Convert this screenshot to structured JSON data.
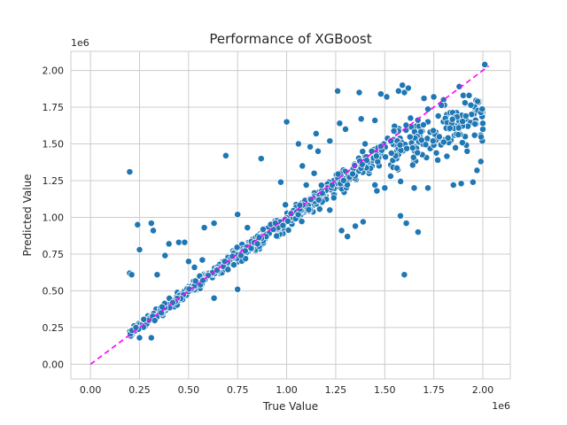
{
  "chart_data": {
    "type": "scatter",
    "title": "Performance of XGBoost",
    "xlabel": "True Value",
    "ylabel": "Predicted Value",
    "x_offset_label": "1e6",
    "y_offset_label": "1e6",
    "xlim": [
      -0.1,
      2.14
    ],
    "ylim": [
      -0.1,
      2.13
    ],
    "x_ticks": [
      "0.00",
      "0.25",
      "0.50",
      "0.75",
      "1.00",
      "1.25",
      "1.50",
      "1.75",
      "2.00"
    ],
    "y_ticks": [
      "0.00",
      "0.25",
      "0.50",
      "0.75",
      "1.00",
      "1.25",
      "1.50",
      "1.75",
      "2.00"
    ],
    "grid": true,
    "legend": "none",
    "colors": {
      "points": "#1f77b4",
      "reference_line": "#ff00ff",
      "grid": "#cccccc",
      "text": "#262626"
    },
    "reference_line": {
      "style": "dashed",
      "x": [
        0.0,
        2.03
      ],
      "y": [
        0.0,
        2.03
      ]
    },
    "points": [
      [
        0.2,
        1.31
      ],
      [
        0.2,
        0.62
      ],
      [
        0.21,
        0.61
      ],
      [
        0.24,
        0.95
      ],
      [
        0.25,
        0.78
      ],
      [
        0.31,
        0.96
      ],
      [
        0.32,
        0.91
      ],
      [
        0.34,
        0.61
      ],
      [
        0.38,
        0.74
      ],
      [
        0.4,
        0.82
      ],
      [
        0.45,
        0.83
      ],
      [
        0.48,
        0.83
      ],
      [
        0.5,
        0.7
      ],
      [
        0.53,
        0.66
      ],
      [
        0.57,
        0.71
      ],
      [
        0.58,
        0.93
      ],
      [
        0.63,
        0.96
      ],
      [
        0.69,
        1.42
      ],
      [
        0.75,
        1.02
      ],
      [
        0.8,
        0.93
      ],
      [
        0.87,
        1.4
      ],
      [
        0.97,
        1.24
      ],
      [
        1.0,
        1.65
      ],
      [
        0.63,
        0.45
      ],
      [
        0.75,
        0.51
      ],
      [
        0.31,
        0.18
      ],
      [
        0.25,
        0.18
      ],
      [
        0.2,
        0.23
      ],
      [
        1.06,
        1.5
      ],
      [
        1.12,
        1.48
      ],
      [
        1.15,
        1.57
      ],
      [
        1.22,
        1.52
      ],
      [
        1.27,
        1.64
      ],
      [
        1.3,
        1.6
      ],
      [
        1.38,
        1.67
      ],
      [
        1.26,
        1.86
      ],
      [
        1.37,
        1.85
      ],
      [
        1.4,
        1.5
      ],
      [
        1.45,
        1.66
      ],
      [
        1.28,
        0.91
      ],
      [
        1.31,
        0.87
      ],
      [
        1.35,
        0.94
      ],
      [
        1.39,
        0.97
      ],
      [
        1.58,
        1.01
      ],
      [
        1.61,
        0.96
      ],
      [
        1.67,
        0.9
      ],
      [
        1.6,
        0.61
      ],
      [
        1.65,
        1.2
      ],
      [
        1.72,
        1.2
      ],
      [
        1.77,
        1.39
      ],
      [
        1.85,
        1.22
      ],
      [
        1.89,
        1.23
      ],
      [
        1.92,
        1.45
      ],
      [
        1.95,
        1.24
      ],
      [
        1.97,
        1.32
      ],
      [
        1.99,
        1.38
      ],
      [
        2.0,
        1.6
      ],
      [
        2.0,
        1.64
      ],
      [
        2.01,
        2.04
      ],
      [
        1.98,
        1.79
      ],
      [
        1.96,
        1.72
      ],
      [
        1.9,
        1.83
      ],
      [
        1.88,
        1.89
      ],
      [
        1.93,
        1.83
      ],
      [
        1.59,
        1.9
      ],
      [
        1.6,
        1.85
      ],
      [
        1.62,
        1.88
      ],
      [
        1.57,
        1.86
      ],
      [
        1.51,
        1.82
      ],
      [
        1.48,
        1.84
      ],
      [
        1.7,
        1.81
      ],
      [
        1.75,
        1.82
      ],
      [
        1.8,
        1.8
      ],
      [
        1.66,
        1.62
      ],
      [
        1.68,
        1.55
      ],
      [
        1.72,
        1.65
      ],
      [
        1.76,
        1.58
      ],
      [
        1.83,
        1.6
      ],
      [
        1.87,
        1.65
      ],
      [
        1.91,
        1.55
      ],
      [
        1.94,
        1.7
      ],
      [
        1.99,
        1.56
      ],
      [
        1.5,
        1.2
      ],
      [
        1.53,
        1.28
      ],
      [
        1.55,
        1.34
      ],
      [
        1.56,
        1.4
      ],
      [
        1.45,
        1.22
      ],
      [
        1.42,
        1.3
      ],
      [
        1.46,
        1.18
      ],
      [
        1.08,
        1.35
      ],
      [
        1.1,
        1.22
      ],
      [
        1.14,
        1.3
      ],
      [
        1.18,
        1.1
      ],
      [
        1.22,
        1.05
      ],
      [
        1.24,
        1.25
      ],
      [
        1.16,
        1.45
      ],
      [
        1.05,
        1.0
      ],
      [
        1.02,
        0.97
      ]
    ]
  }
}
